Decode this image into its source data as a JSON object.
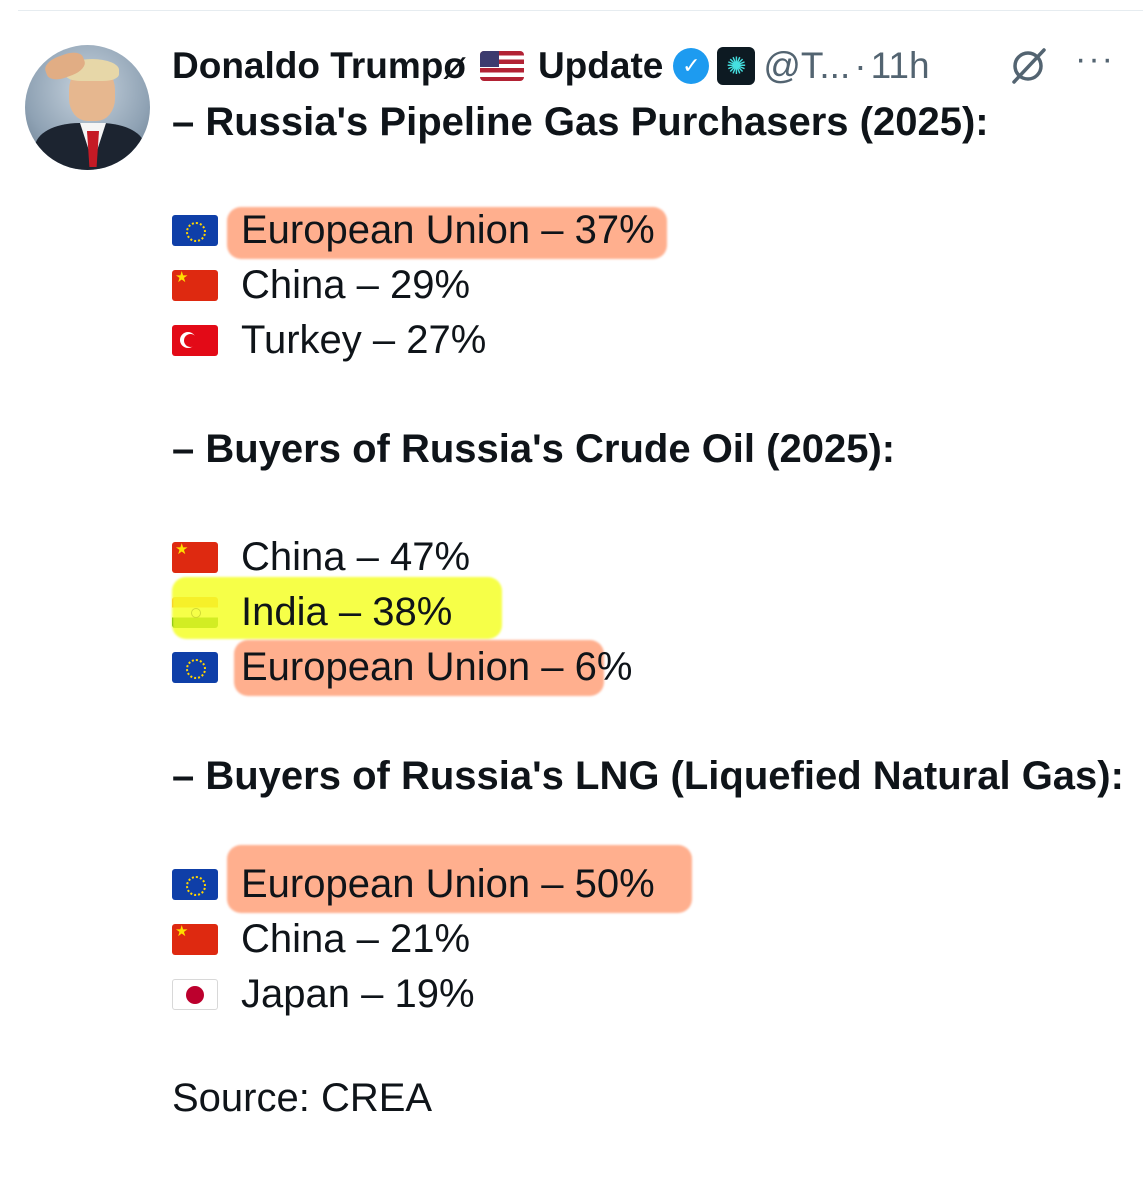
{
  "header": {
    "display_name": "Donaldo Trumpø",
    "display_name_suffix": "Update",
    "handle": "@T...",
    "separator": "·",
    "time": "11h",
    "flag_icon": "us-flag-icon",
    "verified_icon": "verified-badge-icon",
    "more_icon": "more-horizontal-icon"
  },
  "post": {
    "sections": [
      {
        "heading": "– Russia's Pipeline Gas Purchasers (2025):",
        "items": [
          {
            "flag": "eu",
            "text": "European Union – 37%"
          },
          {
            "flag": "cn",
            "text": "China – 29%"
          },
          {
            "flag": "tr",
            "text": "Turkey – 27%"
          }
        ]
      },
      {
        "heading": "– Buyers of Russia's Crude Oil (2025):",
        "items": [
          {
            "flag": "cn",
            "text": "China – 47%"
          },
          {
            "flag": "in",
            "text": "India – 38%"
          },
          {
            "flag": "eu",
            "text": "European Union – 6%"
          }
        ]
      },
      {
        "heading": "– Buyers of Russia's LNG (Liquefied Natural Gas):",
        "items": [
          {
            "flag": "eu",
            "text": "European Union – 50%"
          },
          {
            "flag": "cn",
            "text": "China – 21%"
          },
          {
            "flag": "jp",
            "text": "Japan – 19%"
          }
        ]
      }
    ],
    "source": "Source: CREA"
  },
  "highlights": {
    "orange": "#ff6e32",
    "yellow": "#f5ff28"
  }
}
